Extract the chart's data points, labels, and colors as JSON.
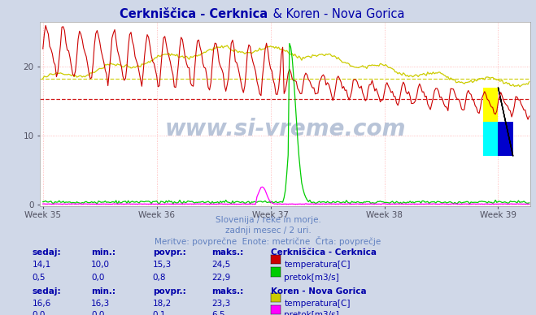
{
  "title_part1": "Cerkniščica - Cerknica",
  "title_part2": " & Koren - Nova Gorica",
  "title_color": "#0000aa",
  "bg_color": "#d0d8e8",
  "plot_bg_color": "#ffffff",
  "watermark": "www.si-vreme.com",
  "watermark_color": "#b8c4d8",
  "subtitle1": "Slovenija / reke in morje.",
  "subtitle2": "zadnji mesec / 2 uri.",
  "subtitle3": "Meritve: povprečne  Enote: metrične  Črta: povprečje",
  "subtitle_color": "#6080c0",
  "xtick_labels": [
    "Week 35",
    "Week 36",
    "Week 37",
    "Week 38",
    "Week 39"
  ],
  "xtick_pos": [
    0,
    84,
    168,
    252,
    336
  ],
  "ylim": [
    -0.3,
    26.5
  ],
  "xlim": [
    -2,
    360
  ],
  "avg_cerknica_temp": 15.3,
  "avg_nova_gorica_temp": 18.2,
  "color_cerknica_temp": "#cc0000",
  "color_cerknica_flow": "#00cc00",
  "color_ng_temp": "#cccc00",
  "color_ng_flow": "#ff00ff",
  "n_points": 360,
  "header_color": "#0000aa",
  "value_color": "#0000aa",
  "station1_name": "Cerkniščica - Cerknica",
  "station1_sedaj_temp": "14,1",
  "station1_min_temp": "10,0",
  "station1_povpr_temp": "15,3",
  "station1_maks_temp": "24,5",
  "station1_sedaj_flow": "0,5",
  "station1_min_flow": "0,0",
  "station1_povpr_flow": "0,8",
  "station1_maks_flow": "22,9",
  "station2_name": "Koren - Nova Gorica",
  "station2_sedaj_temp": "16,6",
  "station2_min_temp": "16,3",
  "station2_povpr_temp": "18,2",
  "station2_maks_temp": "23,3",
  "station2_sedaj_flow": "0,0",
  "station2_min_flow": "0,0",
  "station2_povpr_flow": "0,1",
  "station2_maks_flow": "6,5"
}
